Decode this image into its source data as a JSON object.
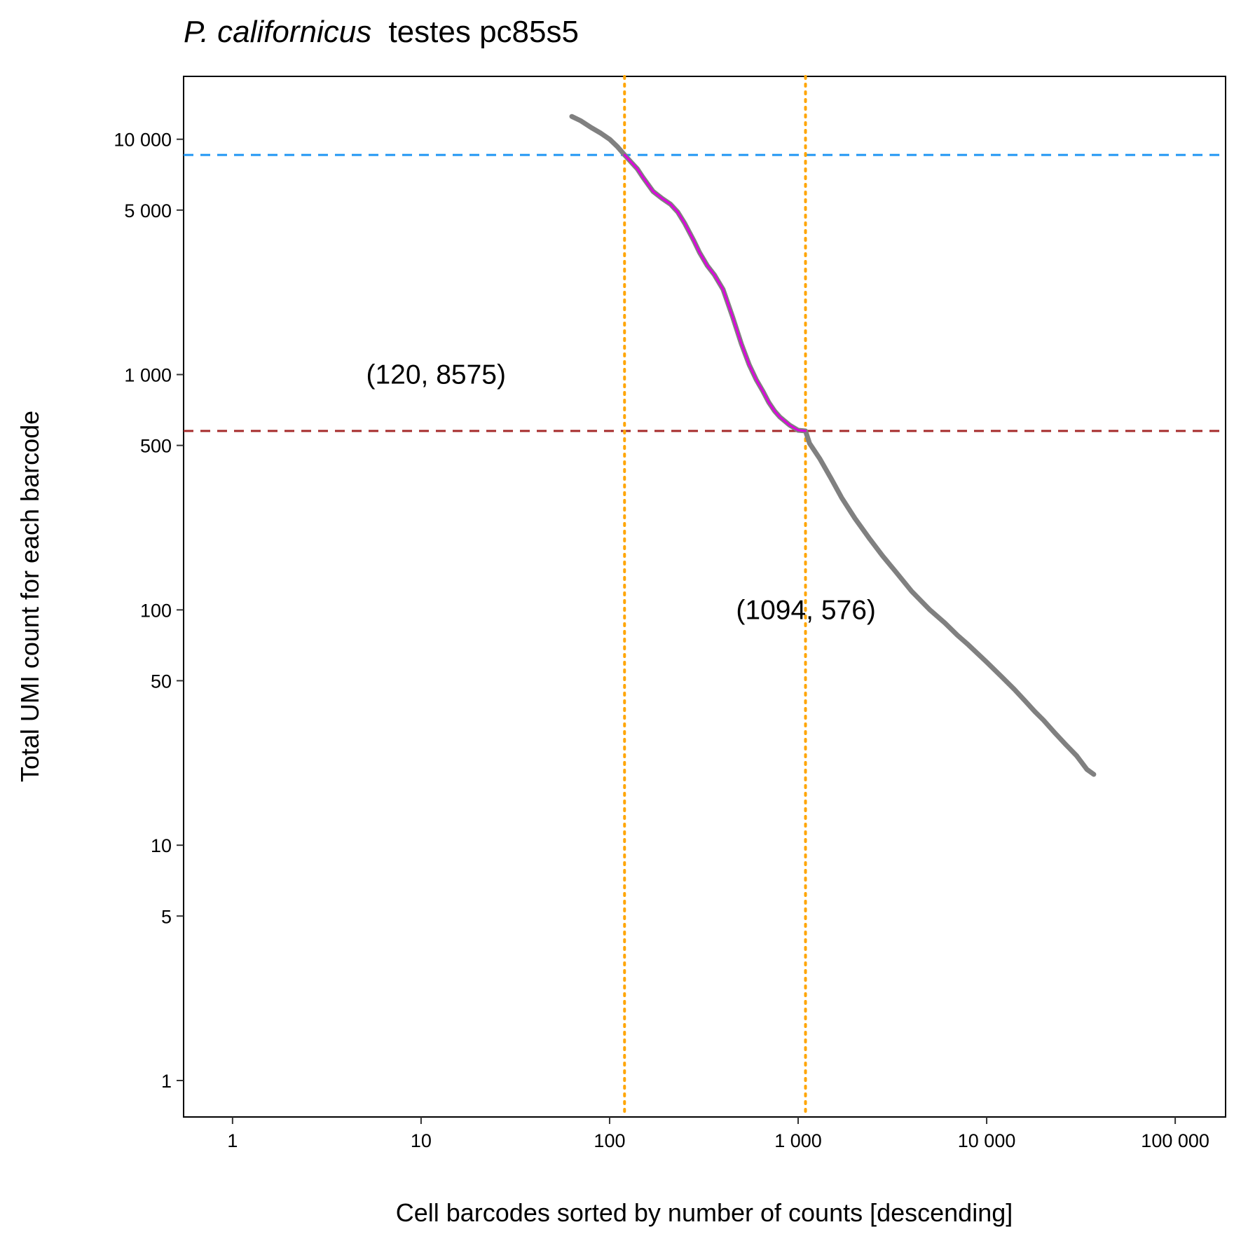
{
  "chart_data": {
    "type": "line",
    "title": {
      "species": "P. californicus",
      "rest": "testes pc85s5"
    },
    "xlabel": "Cell barcodes sorted by number of counts [descending]",
    "ylabel": "Total UMI count for each barcode",
    "x_scale": "log10",
    "y_scale": "log10",
    "xlim": [
      0.55,
      185000
    ],
    "ylim": [
      0.7,
      18500
    ],
    "grid": false,
    "x_ticks": [
      {
        "value": 1,
        "label": "1"
      },
      {
        "value": 10,
        "label": "10"
      },
      {
        "value": 100,
        "label": "100"
      },
      {
        "value": 1000,
        "label": "1 000"
      },
      {
        "value": 10000,
        "label": "10 000"
      },
      {
        "value": 100000,
        "label": "100 000"
      }
    ],
    "y_ticks": [
      {
        "value": 1,
        "label": "1"
      },
      {
        "value": 5,
        "label": "5"
      },
      {
        "value": 10,
        "label": "10"
      },
      {
        "value": 50,
        "label": "50"
      },
      {
        "value": 100,
        "label": "100"
      },
      {
        "value": 500,
        "label": "500"
      },
      {
        "value": 1000,
        "label": "1 000"
      },
      {
        "value": 5000,
        "label": "5 000"
      },
      {
        "value": 10000,
        "label": "10 000"
      }
    ],
    "series": [
      {
        "color": "#808080",
        "x": [
          63,
          70,
          80,
          90,
          100,
          110,
          120,
          130,
          140,
          150,
          170,
          190,
          210,
          230,
          250,
          280,
          300,
          330,
          360,
          400,
          450,
          500,
          550,
          600,
          650,
          700,
          750,
          800,
          900,
          1000,
          1094,
          1150,
          1300,
          1500,
          1700,
          2000,
          2400,
          2800,
          3300,
          4000,
          5000,
          6000,
          7000,
          8000,
          10000,
          12000,
          14000,
          16000,
          18000,
          20000,
          23000,
          26000,
          30000,
          34000,
          37000
        ],
        "y": [
          12500,
          12000,
          11200,
          10600,
          10000,
          9300,
          8575,
          8000,
          7500,
          6900,
          6000,
          5600,
          5300,
          4900,
          4400,
          3700,
          3300,
          2900,
          2650,
          2300,
          1750,
          1350,
          1100,
          950,
          850,
          760,
          700,
          660,
          610,
          580,
          576,
          510,
          440,
          360,
          300,
          245,
          200,
          170,
          145,
          120,
          100,
          88,
          78,
          71,
          60,
          52,
          46,
          41,
          37,
          34,
          30,
          27,
          24,
          21,
          20
        ]
      },
      {
        "color": "#dd00dd",
        "x": [
          120,
          130,
          140,
          150,
          170,
          190,
          210,
          230,
          250,
          280,
          300,
          330,
          360,
          400,
          450,
          500,
          550,
          600,
          650,
          700,
          750,
          800,
          900,
          1000,
          1094
        ],
        "y": [
          8575,
          8000,
          7500,
          6900,
          6000,
          5600,
          5300,
          4900,
          4400,
          3700,
          3300,
          2900,
          2650,
          2300,
          1750,
          1350,
          1100,
          950,
          850,
          760,
          700,
          660,
          610,
          580,
          576
        ]
      }
    ],
    "reference_lines": [
      {
        "orientation": "horizontal",
        "value": 8575,
        "color": "#2196F3",
        "style": "dashed"
      },
      {
        "orientation": "horizontal",
        "value": 576,
        "color": "#a52a2a",
        "style": "dashed"
      },
      {
        "orientation": "vertical",
        "value": 120,
        "color": "#FFA500",
        "style": "dotted"
      },
      {
        "orientation": "vertical",
        "value": 1094,
        "color": "#FFA500",
        "style": "dotted"
      }
    ],
    "annotations": [
      {
        "text": "(120, 8575)",
        "x": 12,
        "y": 1000
      },
      {
        "text": "(1094, 576)",
        "x": 1100,
        "y": 100
      }
    ]
  }
}
